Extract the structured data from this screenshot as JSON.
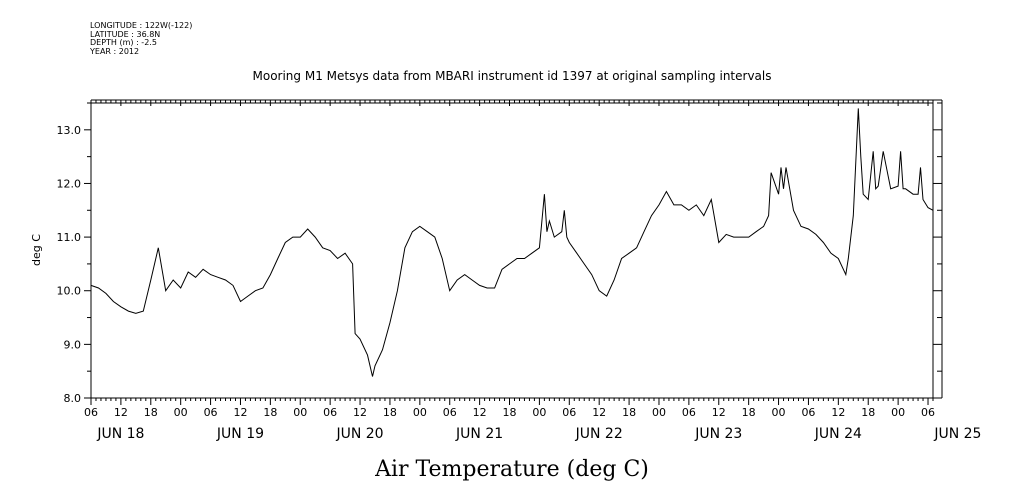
{
  "header": {
    "lines": [
      "LONGITUDE : 122W(-122)",
      "LATITUDE : 36.8N",
      "DEPTH (m) : -2.5",
      "YEAR : 2012"
    ]
  },
  "chart_data": {
    "type": "line",
    "title": "Mooring M1 Metsys data from MBARI instrument id 1397 at original sampling intervals",
    "xlabel": "Air Temperature (deg C)",
    "ylabel": "deg C",
    "ylim": [
      8.0,
      13.5
    ],
    "xlim": [
      "2012-06-18T06:00",
      "2012-06-25T07:00"
    ],
    "yticks": [
      "8.0",
      "9.0",
      "10.0",
      "11.0",
      "12.0",
      "13.0"
    ],
    "xtick_hour_labels": [
      "06",
      "12",
      "18",
      "00",
      "06",
      "12",
      "18",
      "00",
      "06",
      "12",
      "18",
      "00",
      "06",
      "12",
      "18",
      "00",
      "06",
      "12",
      "18",
      "00",
      "06",
      "12",
      "18",
      "00",
      "06",
      "12",
      "18",
      "00",
      "06"
    ],
    "xtick_day_labels": [
      "JUN 18",
      "JUN 19",
      "JUN 20",
      "JUN 21",
      "JUN 22",
      "JUN 23",
      "JUN 24",
      "JUN 25"
    ],
    "series": [
      {
        "x": [
          "2012-06-18T06:00",
          "2012-06-18T07:30",
          "2012-06-18T09:00",
          "2012-06-18T10:30",
          "2012-06-18T12:00",
          "2012-06-18T13:30",
          "2012-06-18T15:00",
          "2012-06-18T16:30",
          "2012-06-18T18:00",
          "2012-06-18T19:30",
          "2012-06-18T21:00",
          "2012-06-18T22:30",
          "2012-06-19T00:00",
          "2012-06-19T01:30",
          "2012-06-19T03:00",
          "2012-06-19T04:30",
          "2012-06-19T06:00",
          "2012-06-19T07:30",
          "2012-06-19T09:00",
          "2012-06-19T10:30",
          "2012-06-19T12:00",
          "2012-06-19T13:30",
          "2012-06-19T15:00",
          "2012-06-19T16:30",
          "2012-06-19T18:00",
          "2012-06-19T19:30",
          "2012-06-19T21:00",
          "2012-06-19T22:30",
          "2012-06-20T00:00",
          "2012-06-20T01:30",
          "2012-06-20T03:00",
          "2012-06-20T04:30",
          "2012-06-20T06:00",
          "2012-06-20T07:30",
          "2012-06-20T09:00",
          "2012-06-20T10:30",
          "2012-06-20T11:00",
          "2012-06-20T12:00",
          "2012-06-20T13:30",
          "2012-06-20T14:30",
          "2012-06-20T15:00",
          "2012-06-20T16:30",
          "2012-06-20T18:00",
          "2012-06-20T19:30",
          "2012-06-20T21:00",
          "2012-06-20T22:30",
          "2012-06-21T00:00",
          "2012-06-21T01:30",
          "2012-06-21T03:00",
          "2012-06-21T04:30",
          "2012-06-21T06:00",
          "2012-06-21T07:30",
          "2012-06-21T09:00",
          "2012-06-21T10:30",
          "2012-06-21T12:00",
          "2012-06-21T13:30",
          "2012-06-21T15:00",
          "2012-06-21T16:30",
          "2012-06-21T18:00",
          "2012-06-21T19:30",
          "2012-06-21T21:00",
          "2012-06-21T22:30",
          "2012-06-22T00:00",
          "2012-06-22T01:00",
          "2012-06-22T01:30",
          "2012-06-22T02:00",
          "2012-06-22T03:00",
          "2012-06-22T04:30",
          "2012-06-22T05:00",
          "2012-06-22T05:30",
          "2012-06-22T06:00",
          "2012-06-22T07:30",
          "2012-06-22T09:00",
          "2012-06-22T10:30",
          "2012-06-22T12:00",
          "2012-06-22T13:30",
          "2012-06-22T15:00",
          "2012-06-22T16:30",
          "2012-06-22T18:00",
          "2012-06-22T19:30",
          "2012-06-22T21:00",
          "2012-06-22T22:30",
          "2012-06-23T00:00",
          "2012-06-23T01:30",
          "2012-06-23T03:00",
          "2012-06-23T04:30",
          "2012-06-23T06:00",
          "2012-06-23T07:30",
          "2012-06-23T09:00",
          "2012-06-23T10:30",
          "2012-06-23T12:00",
          "2012-06-23T13:30",
          "2012-06-23T15:00",
          "2012-06-23T16:30",
          "2012-06-23T18:00",
          "2012-06-23T19:30",
          "2012-06-23T21:00",
          "2012-06-23T22:00",
          "2012-06-23T22:30",
          "2012-06-24T00:00",
          "2012-06-24T00:30",
          "2012-06-24T01:00",
          "2012-06-24T01:30",
          "2012-06-24T03:00",
          "2012-06-24T04:30",
          "2012-06-24T06:00",
          "2012-06-24T07:30",
          "2012-06-24T09:00",
          "2012-06-24T10:30",
          "2012-06-24T12:00",
          "2012-06-24T13:30",
          "2012-06-24T14:00",
          "2012-06-24T15:00",
          "2012-06-24T16:00",
          "2012-06-24T16:30",
          "2012-06-24T17:00",
          "2012-06-24T18:00",
          "2012-06-24T19:00",
          "2012-06-24T19:30",
          "2012-06-24T20:00",
          "2012-06-24T21:00",
          "2012-06-24T22:30",
          "2012-06-25T00:00",
          "2012-06-25T00:30",
          "2012-06-25T01:00",
          "2012-06-25T01:30",
          "2012-06-25T03:00",
          "2012-06-25T04:00",
          "2012-06-25T04:30",
          "2012-06-25T05:00",
          "2012-06-25T06:00",
          "2012-06-25T07:00"
        ],
        "values": [
          10.1,
          10.05,
          9.95,
          9.8,
          9.7,
          9.62,
          9.58,
          9.62,
          10.2,
          10.8,
          10.0,
          10.2,
          10.05,
          10.35,
          10.25,
          10.4,
          10.3,
          10.25,
          10.2,
          10.1,
          9.8,
          9.9,
          10.0,
          10.05,
          10.3,
          10.6,
          10.9,
          11.0,
          11.0,
          11.15,
          11.0,
          10.8,
          10.75,
          10.6,
          10.7,
          10.5,
          9.2,
          9.1,
          8.8,
          8.4,
          8.6,
          8.9,
          9.4,
          10.0,
          10.8,
          11.1,
          11.2,
          11.1,
          11.0,
          10.6,
          10.0,
          10.2,
          10.3,
          10.2,
          10.1,
          10.05,
          10.05,
          10.4,
          10.5,
          10.6,
          10.6,
          10.7,
          10.8,
          11.8,
          11.1,
          11.3,
          11.0,
          11.1,
          11.5,
          11.0,
          10.9,
          10.7,
          10.5,
          10.3,
          10.0,
          9.9,
          10.2,
          10.6,
          10.7,
          10.8,
          11.1,
          11.4,
          11.6,
          11.85,
          11.6,
          11.6,
          11.5,
          11.6,
          11.4,
          11.7,
          10.9,
          11.05,
          11.0,
          11.0,
          11.0,
          11.1,
          11.2,
          11.4,
          12.2,
          11.8,
          12.3,
          11.9,
          12.3,
          11.5,
          11.2,
          11.15,
          11.05,
          10.9,
          10.7,
          10.6,
          10.3,
          10.6,
          11.4,
          13.4,
          12.5,
          11.8,
          11.7,
          12.6,
          11.9,
          11.95,
          12.6,
          11.9,
          11.95,
          12.6,
          11.9,
          11.9,
          11.8,
          11.8,
          12.3,
          11.7,
          11.55,
          11.5
        ]
      }
    ]
  }
}
